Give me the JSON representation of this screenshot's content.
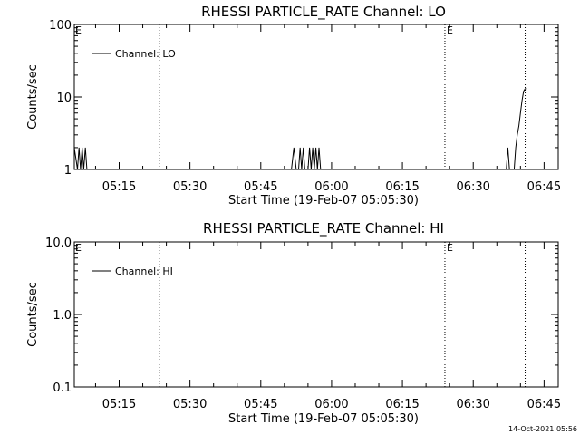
{
  "footer_timestamp": "14-Oct-2021 05:56",
  "chart_data": [
    {
      "type": "line",
      "title": "RHESSI PARTICLE_RATE Channel: LO",
      "xlabel": "Start Time (19-Feb-07 05:05:30)",
      "ylabel": "Counts/sec",
      "yscale": "log",
      "ylim": [
        1,
        100
      ],
      "y_ticks": [
        "1",
        "10",
        "100"
      ],
      "x_ticks": [
        "05:15",
        "05:30",
        "05:45",
        "06:00",
        "06:15",
        "06:30",
        "06:45"
      ],
      "x_range": [
        "05:05:30",
        "06:48:00"
      ],
      "legend": "top-left",
      "vlines": [
        {
          "time": "05:23:30",
          "label": ""
        },
        {
          "time": "06:24:00",
          "label": "E"
        },
        {
          "time": "06:41:00",
          "label": ""
        }
      ],
      "start_marker": "E",
      "series": [
        {
          "name": "Channel: LO",
          "x": [
            "05:05:30",
            "05:06:10",
            "05:06:30",
            "05:06:50",
            "05:07:10",
            "05:07:30",
            "05:07:50",
            "05:08:10",
            "05:08:40",
            "05:08:55",
            "05:51:30",
            "05:52:00",
            "05:52:30",
            "05:53:00",
            "05:53:20",
            "05:53:40",
            "05:54:00",
            "05:54:20",
            "05:54:40",
            "05:55:00",
            "05:55:20",
            "05:55:40",
            "05:56:00",
            "05:56:20",
            "05:56:40",
            "05:57:00",
            "05:57:20",
            "05:57:40",
            "05:58:00",
            "06:37:00",
            "06:37:20",
            "06:37:40",
            "06:38:00",
            "06:38:20",
            "06:38:40",
            "06:39:00",
            "06:39:20",
            "06:39:40",
            "06:40:00",
            "06:40:20",
            "06:40:40",
            "06:41:00",
            "06:41:10"
          ],
          "values": [
            2,
            1,
            2,
            1,
            2,
            1,
            2,
            1,
            1,
            1,
            1,
            2,
            1,
            1,
            2,
            1,
            2,
            1,
            1,
            1,
            2,
            1,
            2,
            1,
            2,
            1,
            2,
            1,
            1,
            1,
            2,
            1,
            1,
            1,
            1,
            2,
            3,
            4,
            6,
            9,
            12,
            13,
            13
          ]
        }
      ]
    },
    {
      "type": "line",
      "title": "RHESSI PARTICLE_RATE Channel: HI",
      "xlabel": "Start Time (19-Feb-07 05:05:30)",
      "ylabel": "Counts/sec",
      "yscale": "log",
      "ylim": [
        0.1,
        10
      ],
      "y_ticks": [
        "0.1",
        "1.0",
        "10.0"
      ],
      "x_ticks": [
        "05:15",
        "05:30",
        "05:45",
        "06:00",
        "06:15",
        "06:30",
        "06:45"
      ],
      "x_range": [
        "05:05:30",
        "06:48:00"
      ],
      "legend": "top-left",
      "vlines": [
        {
          "time": "05:23:30",
          "label": ""
        },
        {
          "time": "06:24:00",
          "label": "E"
        },
        {
          "time": "06:41:00",
          "label": ""
        }
      ],
      "start_marker": "E",
      "series": [
        {
          "name": "Channel: HI",
          "x": [],
          "values": []
        }
      ]
    }
  ]
}
